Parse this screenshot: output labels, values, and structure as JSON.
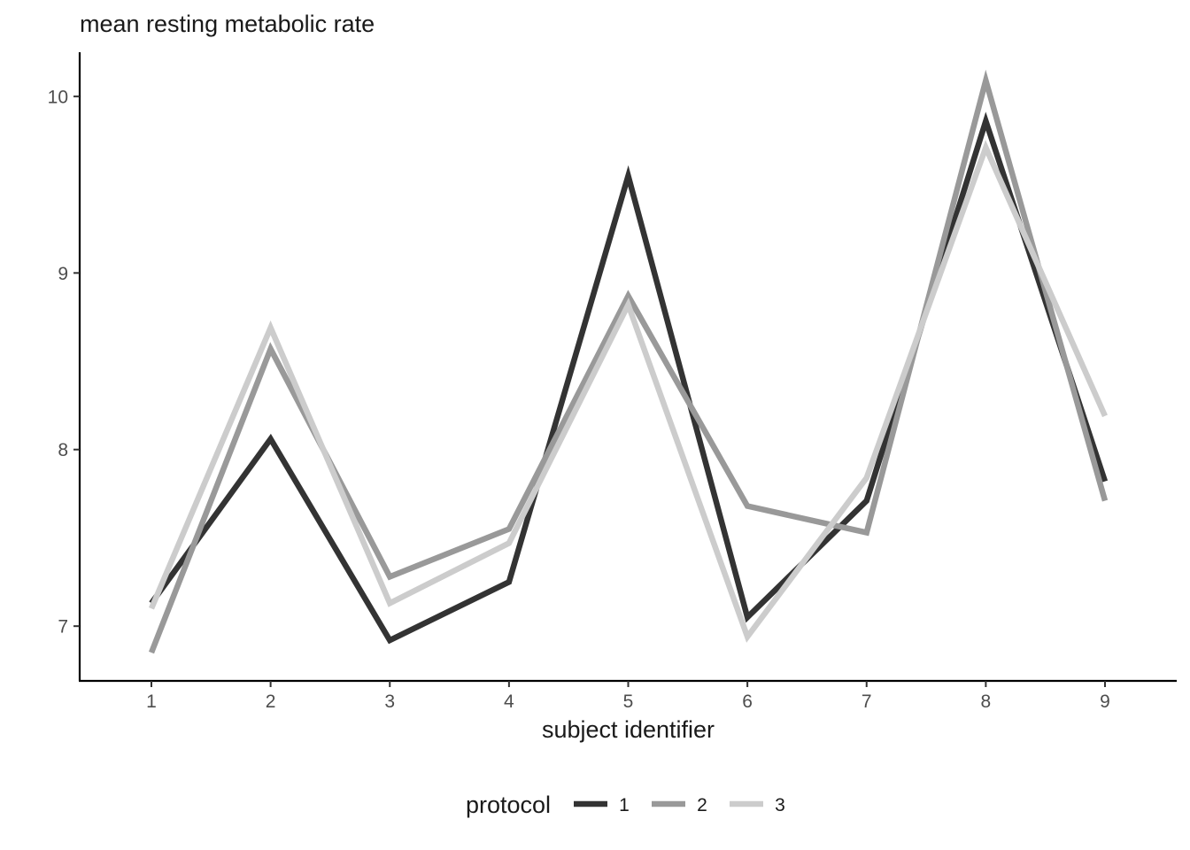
{
  "chart_data": {
    "type": "line",
    "title": "mean resting metabolic rate",
    "xlabel": "subject identifier",
    "ylabel": "",
    "categories": [
      "1",
      "2",
      "3",
      "4",
      "5",
      "6",
      "7",
      "8",
      "9"
    ],
    "yticks": [
      "7",
      "8",
      "9",
      "10"
    ],
    "ylim": [
      6.69,
      10.25
    ],
    "grid": false,
    "legend": {
      "title": "protocol",
      "position": "bottom"
    },
    "series": [
      {
        "name": "1",
        "color": "#333333",
        "values": [
          7.13,
          8.06,
          6.92,
          7.25,
          9.55,
          7.05,
          7.71,
          9.86,
          7.82
        ]
      },
      {
        "name": "2",
        "color": "#999999",
        "values": [
          6.85,
          8.57,
          7.28,
          7.55,
          8.87,
          7.68,
          7.53,
          10.09,
          7.71
        ]
      },
      {
        "name": "3",
        "color": "#cccccc",
        "values": [
          7.1,
          8.69,
          7.13,
          7.47,
          8.82,
          6.94,
          7.84,
          9.71,
          8.19
        ]
      }
    ]
  }
}
